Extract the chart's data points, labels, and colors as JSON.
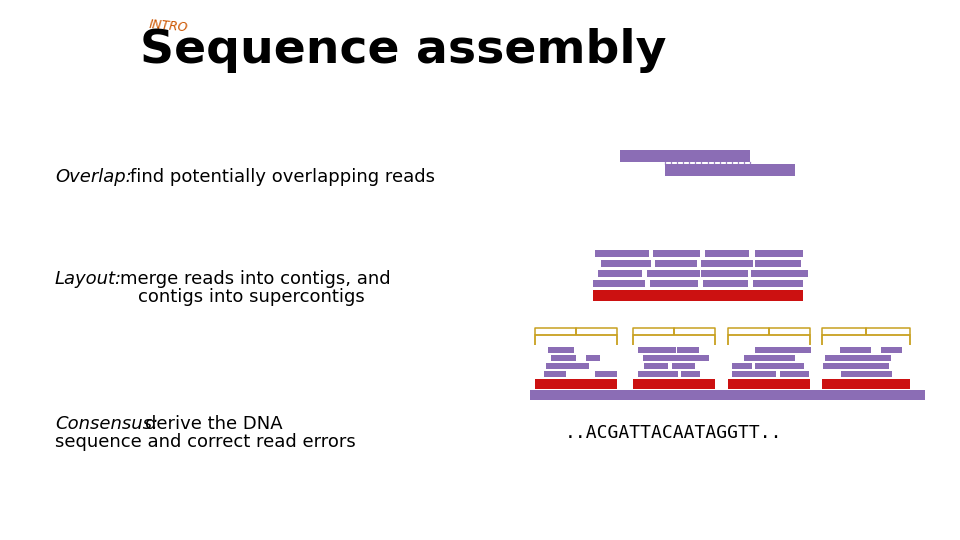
{
  "title": "Sequence assembly",
  "intro_text": "INTRO",
  "overlap_label": "Overlap:",
  "overlap_text": "find potentially overlapping reads",
  "layout_label": "Layout:",
  "layout_line1": "merge reads into contigs, and",
  "layout_line2": "contigs into supercontigs",
  "consensus_label": "Consensus:",
  "consensus_line1": "derive the DNA",
  "consensus_line2": "sequence and correct read errors",
  "consensus_seq": "..ACGATTACAATAGGTT..",
  "purple": "#8B6DB5",
  "red": "#CC1111",
  "gold": "#C8A020",
  "orange_intro": "#CC5500",
  "bg": "#FFFFFF",
  "title_fontsize": 34,
  "intro_fontsize": 9,
  "label_fontsize": 13,
  "body_fontsize": 13,
  "seq_fontsize": 13
}
